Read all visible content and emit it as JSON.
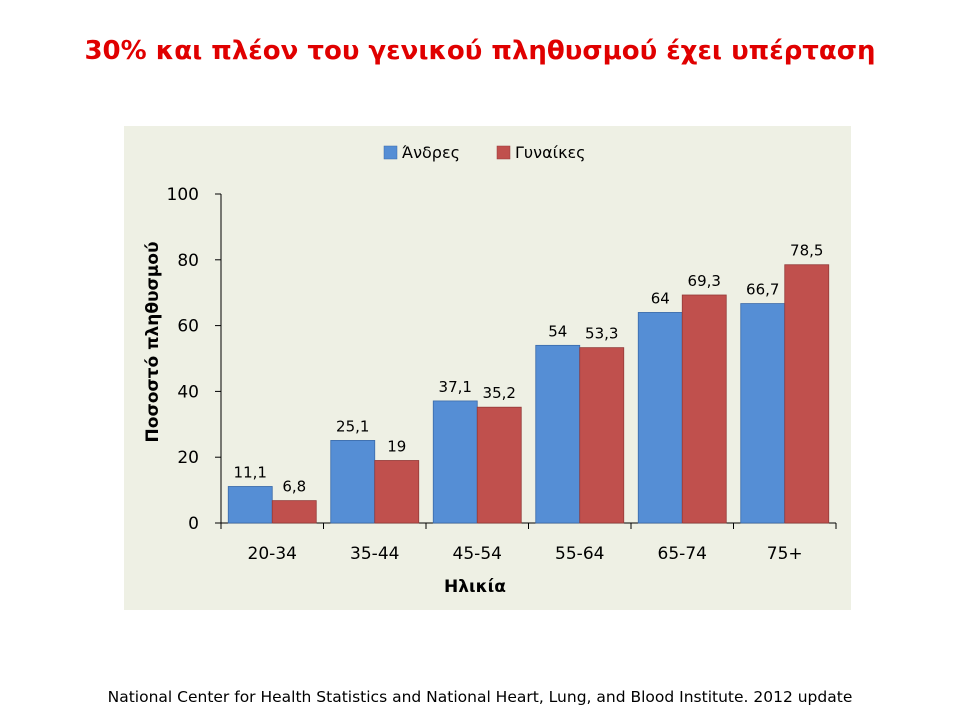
{
  "slide": {
    "title": "30% και πλέον του γενικού πληθυσμού έχει υπέρταση",
    "source": "National Center for Health Statistics and National Heart, Lung, and Blood Institute. 2012 update"
  },
  "colors": {
    "title": "#e00000",
    "panel_background": "#eef0e4",
    "series_men": "#558ed5",
    "series_women": "#c0504d"
  },
  "chart_data": {
    "type": "bar",
    "title": "",
    "xlabel": "Ηλικία",
    "ylabel": "Ποσοστό πληθυσμού",
    "categories": [
      "20-34",
      "35-44",
      "45-54",
      "55-64",
      "65-74",
      "75+"
    ],
    "ylim": [
      0,
      100
    ],
    "yticks": [
      0,
      20,
      40,
      60,
      80,
      100
    ],
    "grid": false,
    "legend": "top-center",
    "series": [
      {
        "name": "Άνδρες",
        "color": "#558ed5",
        "values": [
          11.1,
          25.1,
          37.1,
          54,
          64,
          66.7
        ],
        "labels": [
          "11,1",
          "25,1",
          "37,1",
          "54",
          "64",
          "66,7"
        ]
      },
      {
        "name": "Γυναίκες",
        "color": "#c0504d",
        "values": [
          6.8,
          19,
          35.2,
          53.3,
          69.3,
          78.5
        ],
        "labels": [
          "6,8",
          "19",
          "35,2",
          "53,3",
          "69,3",
          "78,5"
        ]
      }
    ]
  }
}
